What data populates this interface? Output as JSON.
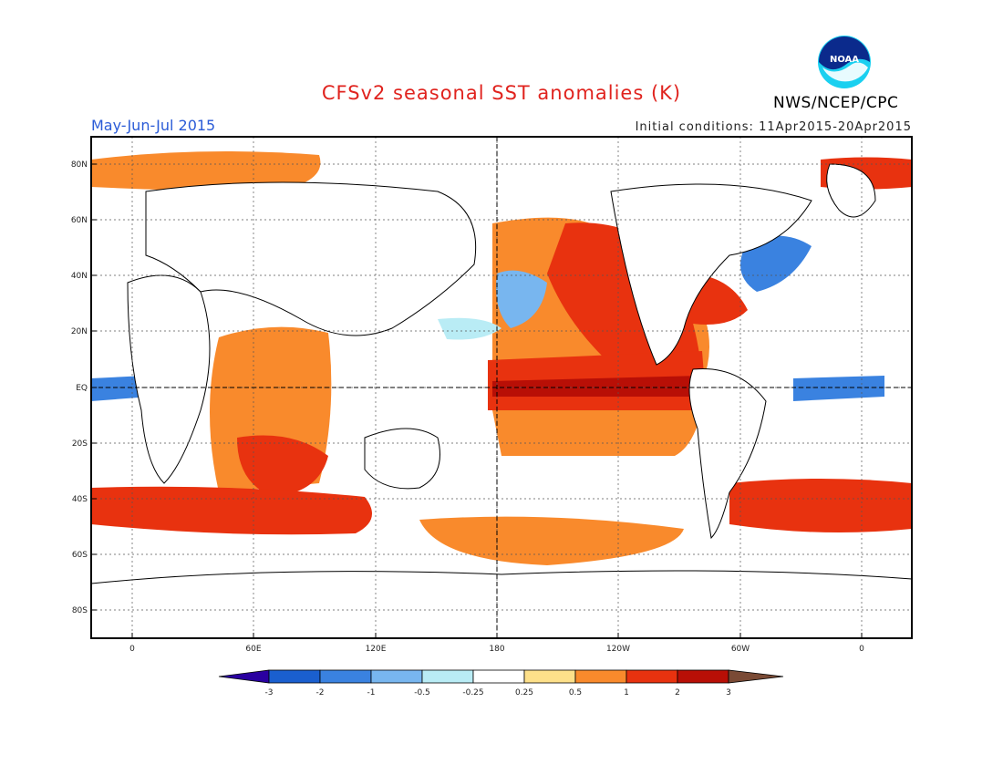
{
  "title": "CFSv2 seasonal SST anomalies (K)",
  "period": "May-Jun-Jul 2015",
  "initial_conditions": "Initial conditions: 11Apr2015-20Apr2015",
  "agency": "NWS/NCEP/CPC",
  "logo_text": "NOAA",
  "map": {
    "lat_labels": [
      "80N",
      "60N",
      "40N",
      "20N",
      "EQ",
      "20S",
      "40S",
      "60S",
      "80S"
    ],
    "lon_labels": [
      "0",
      "60E",
      "120E",
      "180",
      "120W",
      "60W",
      "0"
    ],
    "land_color": "#ffffff",
    "grid": true
  },
  "colorbar": {
    "labels": [
      "-3",
      "-2",
      "-1",
      "-0.5",
      "-0.25",
      "0.25",
      "0.5",
      "1",
      "2",
      "3"
    ],
    "colors": [
      "#2a00a0",
      "#1a5fcf",
      "#3a82e0",
      "#78b6ef",
      "#b9ecf5",
      "#ffffff",
      "#fde08a",
      "#f98a2c",
      "#e8320f",
      "#b80f06",
      "#7a4a35"
    ]
  }
}
